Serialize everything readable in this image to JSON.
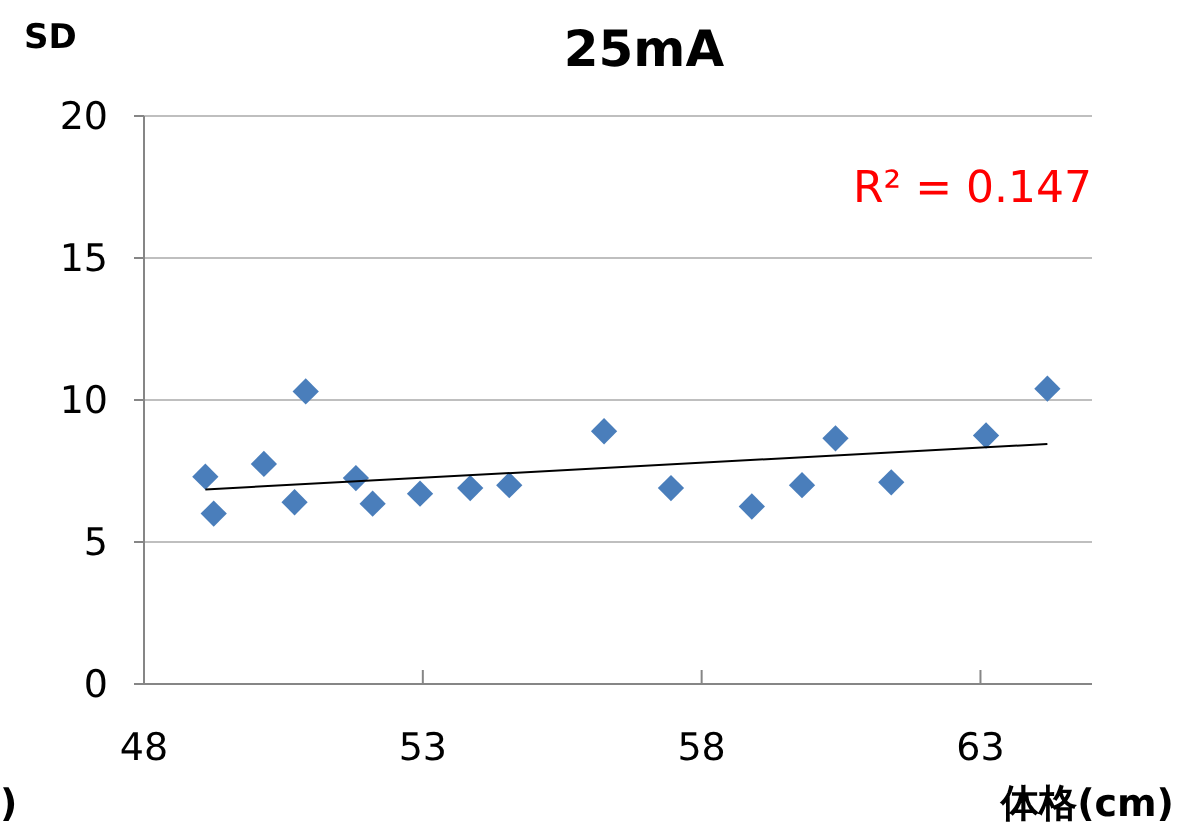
{
  "chart_data": {
    "type": "scatter",
    "title": "25mA",
    "ylabel": "SD",
    "xlabel": "体格(cm)",
    "xlim": [
      48,
      65
    ],
    "xticks": [
      48,
      53,
      58,
      63
    ],
    "ylim": [
      0,
      20
    ],
    "yticks": [
      0,
      5,
      10,
      15,
      20
    ],
    "grid": "y",
    "annotations": [
      "R² = 0.147",
      ")"
    ],
    "series": [
      {
        "marker": "diamond",
        "color": "#4a7ebb",
        "x": [
          49.1,
          49.25,
          50.15,
          50.7,
          50.9,
          51.8,
          52.1,
          52.95,
          53.85,
          54.55,
          56.25,
          57.45,
          58.9,
          59.8,
          60.4,
          61.4,
          63.1,
          64.2
        ],
        "values": [
          7.3,
          6.0,
          7.75,
          6.4,
          10.3,
          7.25,
          6.35,
          6.7,
          6.9,
          7.0,
          8.9,
          6.9,
          6.25,
          7.0,
          8.65,
          7.1,
          8.75,
          10.4
        ]
      },
      {
        "type": "line",
        "color": "#000000",
        "x": [
          49.1,
          64.2
        ],
        "values": [
          6.85,
          8.45
        ]
      }
    ]
  }
}
